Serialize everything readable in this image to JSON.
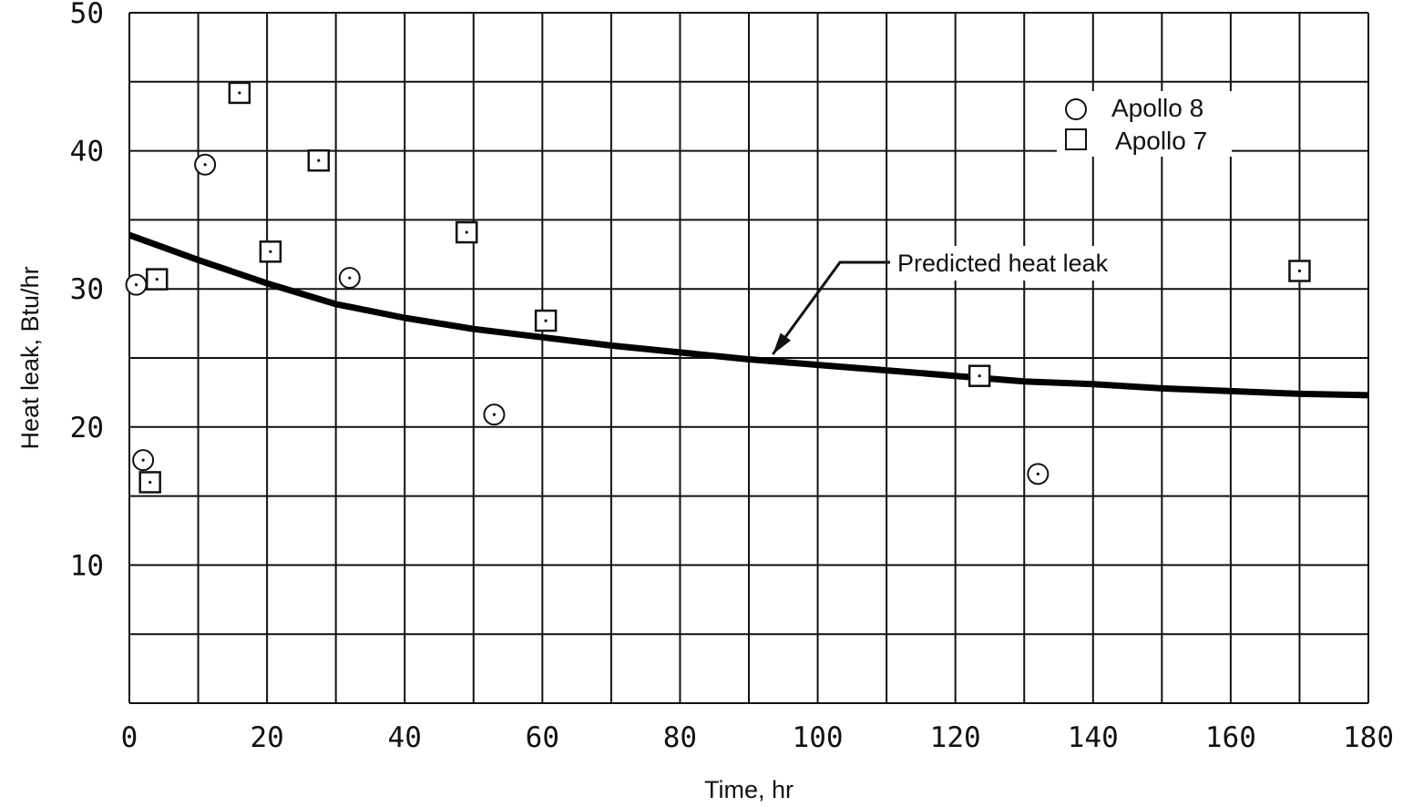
{
  "chart_data": {
    "type": "scatter",
    "title": "",
    "xlabel": "Time, hr",
    "ylabel": "Heat leak, Btu/hr",
    "xlim": [
      0,
      180
    ],
    "ylim": [
      0,
      50
    ],
    "x_ticks": [
      0,
      20,
      40,
      60,
      80,
      100,
      120,
      140,
      160,
      180
    ],
    "y_ticks": [
      10,
      20,
      30,
      40,
      50
    ],
    "grid": true,
    "legend_position": "top-right",
    "series": [
      {
        "name": "Apollo 8",
        "marker": "circle",
        "x": [
          1,
          2,
          11,
          32,
          53,
          132
        ],
        "y": [
          30.3,
          17.6,
          39,
          30.8,
          20.9,
          16.6
        ]
      },
      {
        "name": "Apollo 7",
        "marker": "square",
        "x": [
          4,
          3,
          16,
          20.5,
          27.5,
          49,
          60.5,
          123.5,
          170
        ],
        "y": [
          30.7,
          16,
          44.2,
          32.7,
          39.3,
          34.1,
          27.7,
          23.7,
          31.3
        ]
      }
    ],
    "predicted_curve": {
      "label": "Predicted heat leak",
      "x": [
        0,
        10,
        20,
        30,
        40,
        50,
        60,
        70,
        80,
        90,
        100,
        110,
        120,
        130,
        140,
        150,
        160,
        170,
        180
      ],
      "y": [
        33.9,
        32.1,
        30.4,
        28.9,
        27.9,
        27.1,
        26.5,
        25.9,
        25.4,
        24.9,
        24.5,
        24.1,
        23.7,
        23.3,
        23.1,
        22.8,
        22.6,
        22.4,
        22.3
      ]
    },
    "annotation": {
      "text": "Predicted heat leak",
      "point_x": 94,
      "point_y": 24.8
    }
  }
}
